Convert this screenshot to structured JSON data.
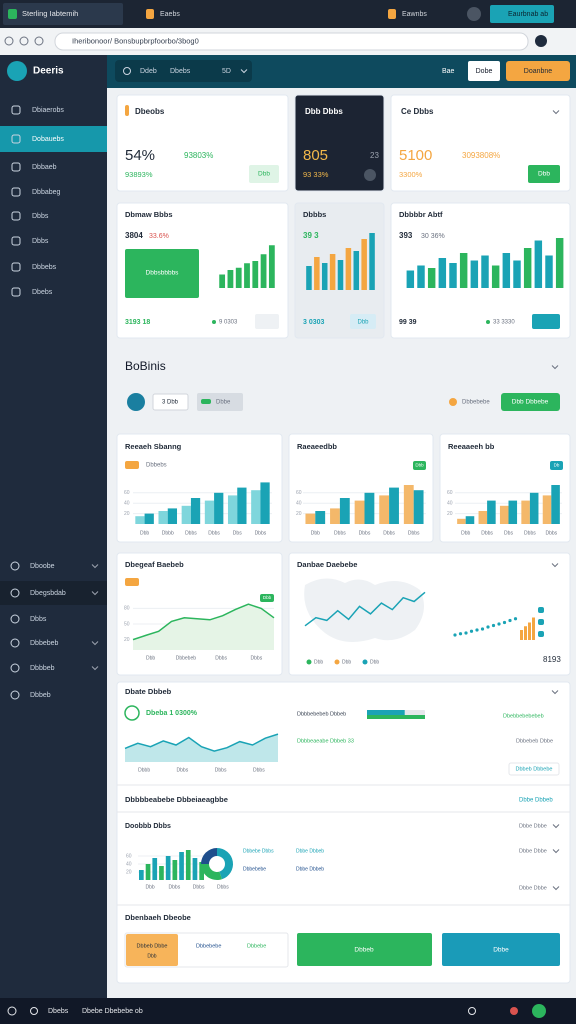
{
  "browser": {
    "tabs": [
      "Sterling Iabtemih",
      "Eaebs"
    ],
    "account": "Eawnbs",
    "profile": "Eaurbnab ab",
    "url": "Iheribonoor/ Bonsbupbrpfoorbo/3bog0"
  },
  "app": {
    "brand": "Deeris",
    "search": "Ddeb",
    "filter": "Dbebs",
    "count": "5D",
    "actions": [
      "Bae",
      "Dobe",
      "Doanbne"
    ]
  },
  "sidebar": {
    "items": [
      "Dbiaerobs",
      "Dobauebs",
      "Dbbaeb",
      "Dbbabeg",
      "Dbbs",
      "Dbbs",
      "Dbbebs",
      "Dbebs"
    ],
    "active": 1,
    "lower": [
      "Dboobe",
      "Dbegsbdab",
      "Dbbs",
      "Dbbebeb",
      "Dbbbeb",
      "Dbbeb"
    ]
  },
  "kpis": [
    {
      "title": "Dbeobs",
      "value": "54%",
      "delta": "93803%",
      "sub": "93893%",
      "button": "Dbb",
      "dark": false
    },
    {
      "title": "Dbb Dbbs",
      "value": "805",
      "delta": "23",
      "sub": "93 33%",
      "dark": true
    },
    {
      "title": "Ce Dbbs",
      "value": "5100",
      "delta": "3093808%",
      "sub": "3300%",
      "button": "Dbb",
      "dark": false
    }
  ],
  "minis": [
    {
      "title": "Dbmaw Bbbs",
      "value": "3804",
      "delta": "33.6%",
      "badge": "Dbbsbbbbs",
      "foot": "3193 18",
      "link": "9 0303",
      "ylim": [
        0,
        100
      ],
      "values": [
        30,
        40,
        45,
        55,
        60,
        75,
        95
      ],
      "colors": [
        "#2cb55d"
      ]
    },
    {
      "title": "Dbbbs",
      "value": "39 3",
      "delta": "",
      "foot": "3 0303",
      "link": "Dbb",
      "ylim": [
        0,
        100
      ],
      "values": [
        40,
        55,
        45,
        60,
        50,
        70,
        65,
        85,
        95
      ],
      "colors": [
        "#1aa3b5",
        "#f4a641"
      ]
    },
    {
      "title": "Dbbbbr Abtf",
      "value": "393",
      "delta": "30 36%",
      "foot": "99 39",
      "link": "33 3330",
      "ylim": [
        0,
        100
      ],
      "values": [
        35,
        45,
        40,
        60,
        50,
        70,
        55,
        65,
        45,
        70,
        55,
        80,
        95,
        65,
        100
      ],
      "colors": [
        "#1aa3b5",
        "#1aa3b5",
        "#2cb55d"
      ]
    }
  ],
  "section": {
    "title": "BoBinis",
    "chip": "3 Dbb",
    "filter": "Dbbe",
    "link": "Dbbebebe",
    "action": "Dbb Dbbebe"
  },
  "charts": [
    {
      "title": "Reeaeh Sbanng",
      "badge": "Dbbebs",
      "ylim": [
        0,
        100
      ],
      "yticks": [
        20,
        40,
        60
      ],
      "categories": [
        "Dbb",
        "Dbbb",
        "Dbbs",
        "Dbbs",
        "Dbs",
        "Dbbs"
      ],
      "series": [
        {
          "color": "#7fd6dc",
          "values": [
            15,
            25,
            35,
            45,
            55,
            65
          ]
        },
        {
          "color": "#1aa3b5",
          "values": [
            20,
            30,
            50,
            60,
            70,
            80
          ]
        }
      ]
    },
    {
      "title": "Raeaeedbb",
      "badge": "Dbb",
      "ylim": [
        0,
        100
      ],
      "yticks": [
        20,
        40,
        60
      ],
      "categories": [
        "Dbb",
        "Dbbs",
        "Dbbs",
        "Dbbs",
        "Dbbs"
      ],
      "series": [
        {
          "color": "#f4b86a",
          "values": [
            20,
            30,
            45,
            55,
            75
          ]
        },
        {
          "color": "#1aa3b5",
          "values": [
            25,
            50,
            60,
            70,
            65
          ]
        }
      ]
    },
    {
      "title": "Reeaaeeh bb",
      "badge": "Db",
      "ylim": [
        0,
        100
      ],
      "yticks": [
        20,
        40,
        60
      ],
      "categories": [
        "Dbb",
        "Dbbs",
        "Dbs",
        "Dbbs",
        "Dbbs"
      ],
      "series": [
        {
          "color": "#f4b86a",
          "values": [
            10,
            25,
            35,
            45,
            55
          ]
        },
        {
          "color": "#1aa3b5",
          "values": [
            15,
            45,
            45,
            60,
            75
          ]
        }
      ]
    }
  ],
  "trend": {
    "title": "Dbegeaf Baebeb",
    "badge": "Dbb",
    "ylim": [
      0,
      100
    ],
    "yticks": [
      20,
      50,
      80
    ],
    "xlabels": [
      "Dbb",
      "Dbbebeb",
      "Dbbs",
      "Dbbs"
    ],
    "values": [
      20,
      28,
      36,
      55,
      62,
      60,
      58,
      66,
      78,
      88,
      80,
      62
    ],
    "color": "#2cb55d"
  },
  "map": {
    "title": "Danbae Daebebe",
    "value": "8193",
    "ylim": [
      0,
      100
    ],
    "values": [
      30,
      45,
      40,
      58,
      42,
      66,
      52,
      72,
      60,
      82,
      75,
      92
    ],
    "color": "#1aa3b5",
    "legend": [
      {
        "name": "Dbb",
        "color": "#2cb55d"
      },
      {
        "name": "Dbb",
        "color": "#f4a641"
      },
      {
        "name": "Dbb",
        "color": "#1aa3b5"
      }
    ],
    "dots": [
      20,
      25,
      28,
      35,
      40,
      44,
      52,
      58,
      64,
      70,
      78,
      85
    ],
    "bars": [
      40,
      55,
      70,
      90
    ]
  },
  "detail": {
    "title": "Dbate Dbbeb",
    "kpi": "Dbeba 1 0300%",
    "ylim": [
      0,
      100
    ],
    "values": [
      40,
      55,
      45,
      62,
      50,
      72,
      45,
      32,
      42,
      60,
      50,
      70,
      82
    ],
    "xlabels": [
      "Dbbb",
      "Dbbs",
      "Dbbs",
      "Dbbs"
    ],
    "rows": [
      {
        "label": "Dbbbebebeb Dbbeb",
        "value": 65,
        "note": "Dbebbebebebeb"
      },
      {
        "label": "Dbbbeaeabe Dbbeb 33",
        "note": "Dbbebeb Dbbe"
      }
    ],
    "link": "Dbbeb Dbbebe"
  },
  "sub": {
    "title": "Dbbbbeabebe Dbbeiaeagbbe",
    "link": "Dbbe Dbbeb",
    "chart_title": "Doobbb Dbbs",
    "ylim": [
      0,
      100
    ],
    "yticks": [
      20,
      40,
      60
    ],
    "values": [
      25,
      40,
      55,
      35,
      60,
      50,
      70,
      75,
      55,
      45
    ],
    "colors": [
      "#1aa3b5",
      "#2cb55d"
    ],
    "xlabels": [
      "Dbb",
      "Dbbs",
      "Dbbs",
      "Dbbs"
    ],
    "legend": [
      "Dbbebe Dbbs",
      "Dbbebebe",
      "Dbbe Dbbeb",
      "Dbbe Dbbeb"
    ],
    "donut": [
      45,
      30,
      25
    ],
    "donut_colors": [
      "#1aa3b5",
      "#2cb55d",
      "#1f4e8c"
    ],
    "options": [
      "Dbbe Dbbe",
      "Dbbe Dbbe",
      "Dbbe Dbbe"
    ]
  },
  "actions": {
    "title": "Dbenbaeh Dbeobe",
    "note_title": "Dbbeb Dbbe",
    "note_sub": "Dbb",
    "note_link": "Dbbebebe",
    "note_value": "Dbbebe",
    "buttons": [
      "Dbbeb",
      "Dbbe"
    ]
  },
  "taskbar": {
    "left": "Dbebs",
    "text": "Dbebe Dbebebe ob"
  }
}
